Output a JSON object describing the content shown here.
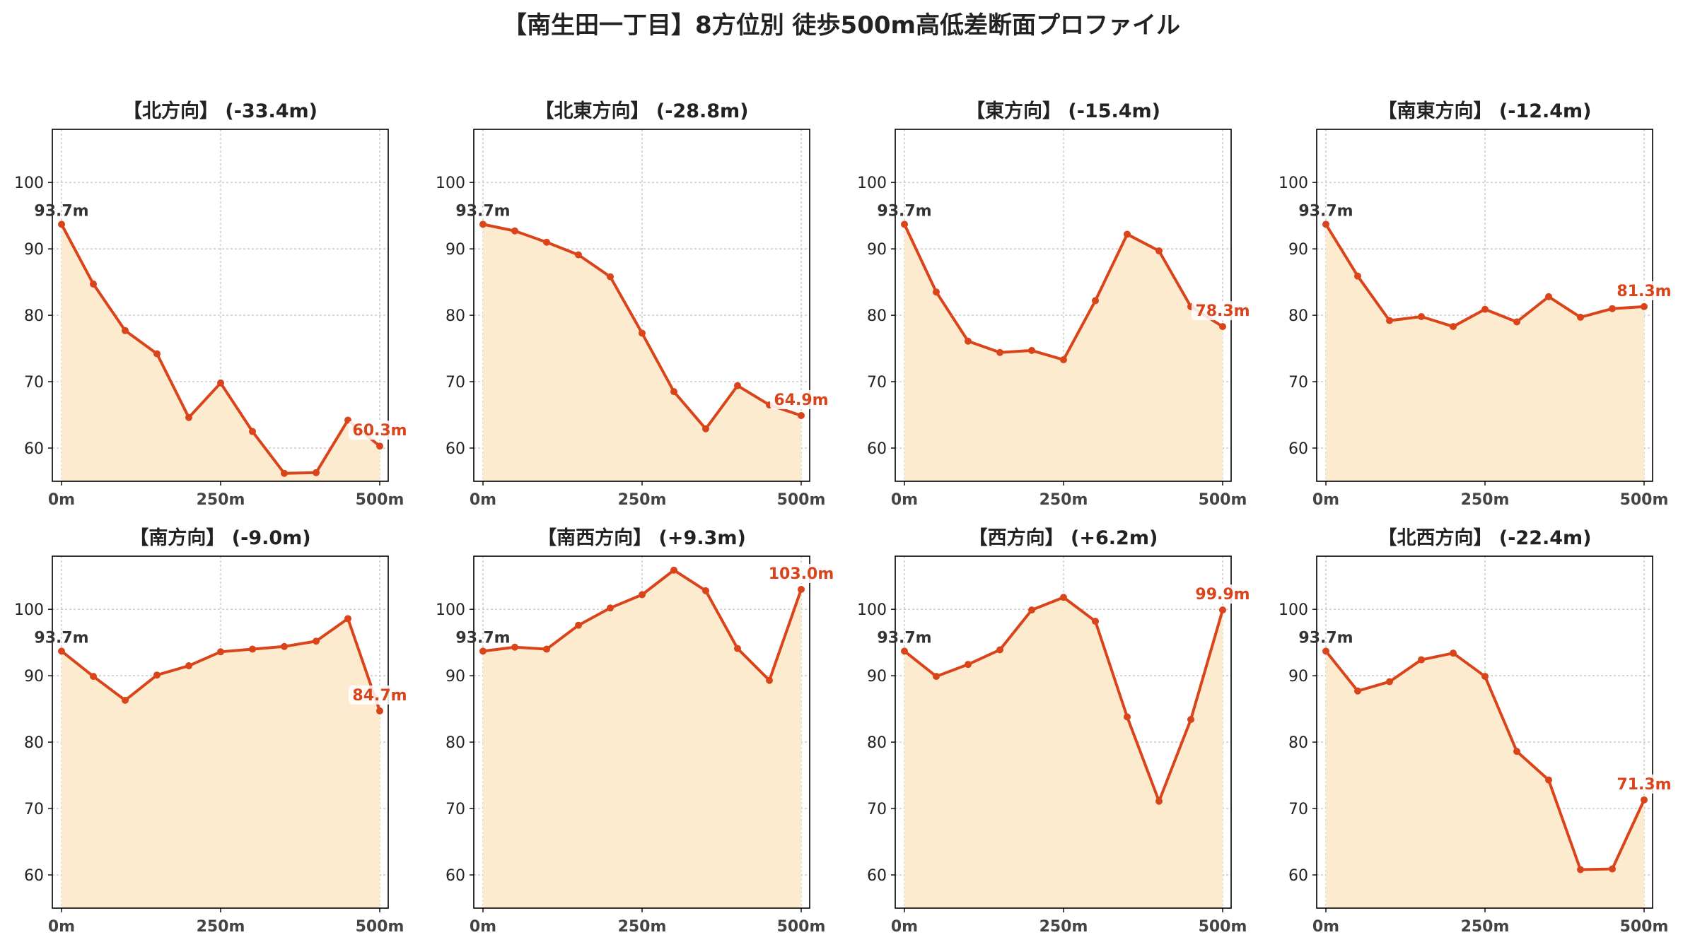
{
  "title": "【南生田一丁目】8方位別 徒歩500m高低差断面プロファイル",
  "style": {
    "line_color": "#D9441A",
    "fill_color": "#FDEBD0",
    "start_label_color": "#333333",
    "end_label_color": "#D9441A",
    "grid_color": "#C8C8C8",
    "axis_color": "#000000"
  },
  "chart_data": [
    {
      "type": "area",
      "title": "【北方向】 (-33.4m)",
      "x": [
        0,
        50,
        100,
        150,
        200,
        250,
        300,
        350,
        400,
        450,
        500
      ],
      "y": [
        93.7,
        84.7,
        77.7,
        74.2,
        64.6,
        69.8,
        62.5,
        56.2,
        56.3,
        64.2,
        60.3
      ],
      "start_label": "93.7m",
      "end_label": "60.3m",
      "xticks": [
        "0m",
        "250m",
        "500m"
      ],
      "yticks": [
        "60",
        "70",
        "80",
        "90",
        "100"
      ],
      "ylim": [
        55,
        108
      ],
      "grid": true
    },
    {
      "type": "area",
      "title": "【北東方向】 (-28.8m)",
      "x": [
        0,
        50,
        100,
        150,
        200,
        250,
        300,
        350,
        400,
        450,
        500
      ],
      "y": [
        93.7,
        92.7,
        91.0,
        89.1,
        85.8,
        77.3,
        68.5,
        62.9,
        69.4,
        66.5,
        64.9
      ],
      "start_label": "93.7m",
      "end_label": "64.9m",
      "xticks": [
        "0m",
        "250m",
        "500m"
      ],
      "yticks": [
        "60",
        "70",
        "80",
        "90",
        "100"
      ],
      "ylim": [
        55,
        108
      ],
      "grid": true
    },
    {
      "type": "area",
      "title": "【東方向】 (-15.4m)",
      "x": [
        0,
        50,
        100,
        150,
        200,
        250,
        300,
        350,
        400,
        450,
        500
      ],
      "y": [
        93.7,
        83.5,
        76.1,
        74.4,
        74.7,
        73.3,
        82.2,
        92.2,
        89.7,
        81.3,
        78.3
      ],
      "start_label": "93.7m",
      "end_label": "78.3m",
      "xticks": [
        "0m",
        "250m",
        "500m"
      ],
      "yticks": [
        "60",
        "70",
        "80",
        "90",
        "100"
      ],
      "ylim": [
        55,
        108
      ],
      "grid": true
    },
    {
      "type": "area",
      "title": "【南東方向】 (-12.4m)",
      "x": [
        0,
        50,
        100,
        150,
        200,
        250,
        300,
        350,
        400,
        450,
        500
      ],
      "y": [
        93.7,
        85.9,
        79.2,
        79.8,
        78.3,
        80.9,
        79.0,
        82.8,
        79.7,
        81.0,
        81.3
      ],
      "start_label": "93.7m",
      "end_label": "81.3m",
      "xticks": [
        "0m",
        "250m",
        "500m"
      ],
      "yticks": [
        "60",
        "70",
        "80",
        "90",
        "100"
      ],
      "ylim": [
        55,
        108
      ],
      "grid": true
    },
    {
      "type": "area",
      "title": "【南方向】 (-9.0m)",
      "x": [
        0,
        50,
        100,
        150,
        200,
        250,
        300,
        350,
        400,
        450,
        500
      ],
      "y": [
        93.7,
        89.9,
        86.3,
        90.1,
        91.5,
        93.6,
        94.0,
        94.4,
        95.2,
        98.6,
        84.7
      ],
      "start_label": "93.7m",
      "end_label": "84.7m",
      "xticks": [
        "0m",
        "250m",
        "500m"
      ],
      "yticks": [
        "60",
        "70",
        "80",
        "90",
        "100"
      ],
      "ylim": [
        55,
        108
      ],
      "grid": true
    },
    {
      "type": "area",
      "title": "【南西方向】 (+9.3m)",
      "x": [
        0,
        50,
        100,
        150,
        200,
        250,
        300,
        350,
        400,
        450,
        500
      ],
      "y": [
        93.7,
        94.3,
        94.0,
        97.6,
        100.2,
        102.2,
        105.9,
        102.8,
        94.1,
        89.3,
        103.0
      ],
      "start_label": "93.7m",
      "end_label": "103.0m",
      "xticks": [
        "0m",
        "250m",
        "500m"
      ],
      "yticks": [
        "60",
        "70",
        "80",
        "90",
        "100"
      ],
      "ylim": [
        55,
        108
      ],
      "grid": true
    },
    {
      "type": "area",
      "title": "【西方向】 (+6.2m)",
      "x": [
        0,
        50,
        100,
        150,
        200,
        250,
        300,
        350,
        400,
        450,
        500
      ],
      "y": [
        93.7,
        89.9,
        91.7,
        93.9,
        99.9,
        101.8,
        98.2,
        83.8,
        71.1,
        83.4,
        99.9
      ],
      "start_label": "93.7m",
      "end_label": "99.9m",
      "xticks": [
        "0m",
        "250m",
        "500m"
      ],
      "yticks": [
        "60",
        "70",
        "80",
        "90",
        "100"
      ],
      "ylim": [
        55,
        108
      ],
      "grid": true
    },
    {
      "type": "area",
      "title": "【北西方向】 (-22.4m)",
      "x": [
        0,
        50,
        100,
        150,
        200,
        250,
        300,
        350,
        400,
        450,
        500
      ],
      "y": [
        93.7,
        87.7,
        89.1,
        92.4,
        93.4,
        89.9,
        78.6,
        74.3,
        60.8,
        60.9,
        71.3
      ],
      "start_label": "93.7m",
      "end_label": "71.3m",
      "xticks": [
        "0m",
        "250m",
        "500m"
      ],
      "yticks": [
        "60",
        "70",
        "80",
        "90",
        "100"
      ],
      "ylim": [
        55,
        108
      ],
      "grid": true
    }
  ]
}
